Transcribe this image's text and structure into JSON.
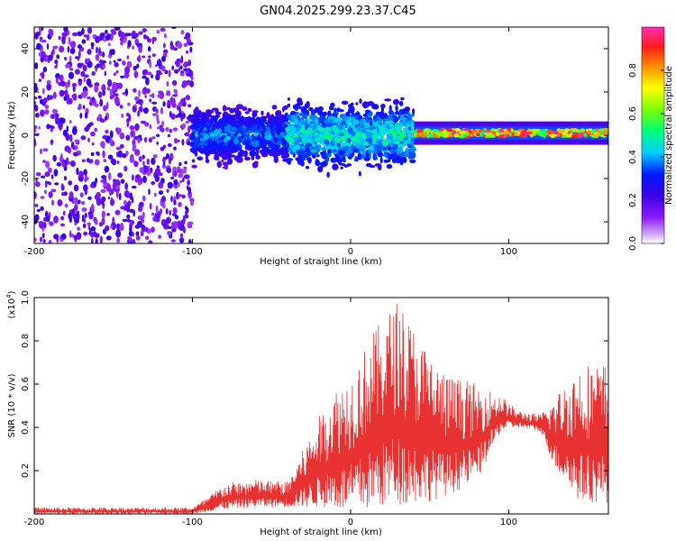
{
  "title": "GN04.2025.299.23.37.C45",
  "colors": {
    "snr_line": "#e83232",
    "spectrogram_palette": [
      "#ffffff",
      "#cc99ff",
      "#8a1aff",
      "#3f00e6",
      "#0019ff",
      "#00cfff",
      "#00ff7a",
      "#7aff00",
      "#ffff00",
      "#ff8a00",
      "#ff1a1a",
      "#ff2fb4"
    ]
  },
  "chart_data": [
    {
      "type": "heatmap",
      "name": "spectrogram",
      "xlabel": "Height of straight line (km)",
      "ylabel": "Frequency (Hz)",
      "xlim": [
        -200,
        163
      ],
      "ylim": [
        -50,
        50
      ],
      "xticks": [
        -200,
        -100,
        0,
        100
      ],
      "yticks": [
        -40,
        -20,
        0,
        20,
        40
      ],
      "colorbar": {
        "label": "Normalized spectral amplitude",
        "range": [
          0,
          1
        ],
        "ticks": [
          "0.0",
          "0.2",
          "0.4",
          "0.6",
          "0.8"
        ],
        "tick_values": [
          0.0,
          0.2,
          0.4,
          0.6,
          0.8
        ]
      },
      "regions": [
        {
          "x": [
            -200,
            -100
          ],
          "pattern": "broadband scattered noise",
          "freq_range": [
            -50,
            50
          ],
          "amplitude": [
            0.1,
            0.25
          ]
        },
        {
          "x": [
            -100,
            -40
          ],
          "pattern": "diffuse band",
          "center_hz": 0,
          "halfwidth_hz": 10,
          "amplitude": [
            0.15,
            0.45
          ]
        },
        {
          "x": [
            -40,
            40
          ],
          "pattern": "diffuse band",
          "center_hz": 0,
          "halfwidth_hz": 12,
          "amplitude": [
            0.2,
            0.55
          ]
        },
        {
          "x": [
            40,
            163
          ],
          "pattern": "narrow line",
          "center_hz": 1,
          "halfwidth_hz": 3,
          "amplitude": [
            0.5,
            1.0
          ]
        }
      ]
    },
    {
      "type": "line",
      "name": "snr",
      "xlabel": "Height of straight line (km)",
      "ylabel": "SNR (10 * v/v)",
      "y_multiplier_label": "(x10",
      "y_multiplier_exp": "4",
      "xlim": [
        -200,
        163
      ],
      "ylim": [
        0,
        1.0
      ],
      "xticks": [
        -200,
        -100,
        0,
        100
      ],
      "yticks": [
        0.2,
        0.4,
        0.6,
        0.8,
        1.0
      ],
      "series": [
        {
          "color": "#e83232",
          "envelope": [
            {
              "x": -200,
              "low": 0.0,
              "high": 0.03
            },
            {
              "x": -100,
              "low": 0.0,
              "high": 0.03
            },
            {
              "x": -90,
              "low": 0.01,
              "high": 0.08
            },
            {
              "x": -80,
              "low": 0.02,
              "high": 0.14
            },
            {
              "x": -60,
              "low": 0.03,
              "high": 0.16
            },
            {
              "x": -40,
              "low": 0.03,
              "high": 0.15
            },
            {
              "x": -20,
              "low": 0.03,
              "high": 0.45
            },
            {
              "x": -10,
              "low": 0.02,
              "high": 0.58
            },
            {
              "x": 0,
              "low": 0.0,
              "high": 0.65
            },
            {
              "x": 15,
              "low": 0.02,
              "high": 0.85
            },
            {
              "x": 30,
              "low": 0.04,
              "high": 1.0
            },
            {
              "x": 45,
              "low": 0.05,
              "high": 0.8
            },
            {
              "x": 60,
              "low": 0.08,
              "high": 0.65
            },
            {
              "x": 80,
              "low": 0.15,
              "high": 0.6
            },
            {
              "x": 95,
              "low": 0.38,
              "high": 0.55
            },
            {
              "x": 105,
              "low": 0.4,
              "high": 0.48
            },
            {
              "x": 120,
              "low": 0.38,
              "high": 0.46
            },
            {
              "x": 130,
              "low": 0.2,
              "high": 0.55
            },
            {
              "x": 145,
              "low": 0.05,
              "high": 0.7
            },
            {
              "x": 163,
              "low": 0.05,
              "high": 0.7
            }
          ]
        }
      ]
    }
  ]
}
